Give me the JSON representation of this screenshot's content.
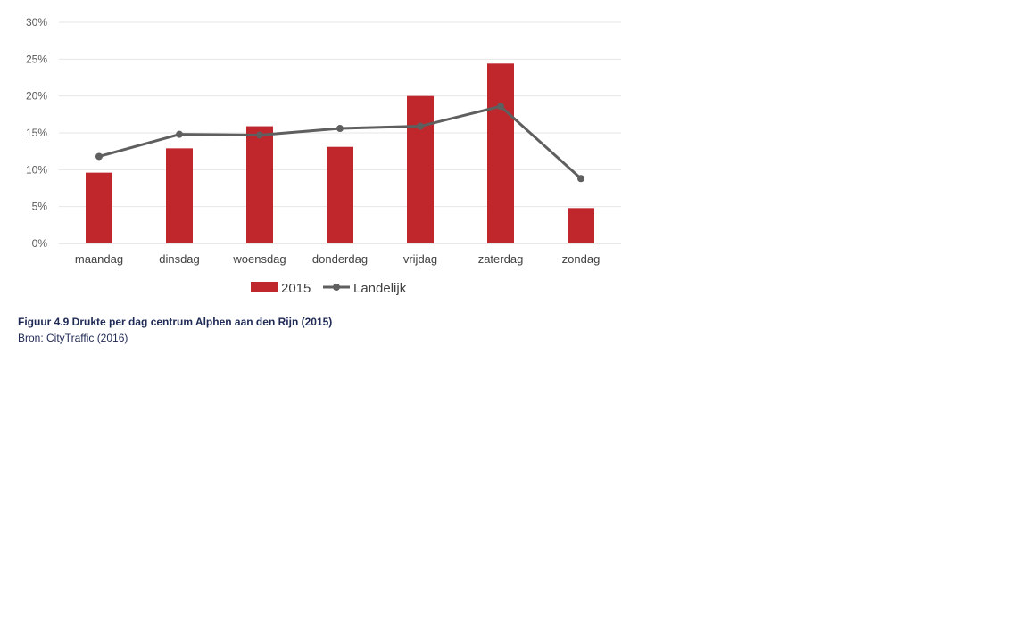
{
  "chart_data": {
    "type": "bar",
    "categories": [
      "maandag",
      "dinsdag",
      "woensdag",
      "donderdag",
      "vrijdag",
      "zaterdag",
      "zondag"
    ],
    "series": [
      {
        "name": "2015",
        "type": "bar",
        "color": "#c0272d",
        "values": [
          9.6,
          12.9,
          15.9,
          13.1,
          20.0,
          24.4,
          4.8
        ]
      },
      {
        "name": "Landelijk",
        "type": "line",
        "color": "#5f5f5f",
        "values": [
          11.8,
          14.8,
          14.7,
          15.6,
          15.9,
          18.6,
          8.8
        ]
      }
    ],
    "yticks": [
      "0%",
      "5%",
      "10%",
      "15%",
      "20%",
      "25%",
      "30%"
    ],
    "ylim": [
      0,
      30
    ],
    "unit": "%",
    "grid": true,
    "legend_position": "bottom"
  },
  "caption": {
    "title": "Figuur 4.9 Drukte per dag centrum Alphen aan den Rijn (2015)",
    "source": "Bron: CityTraffic (2016)"
  }
}
